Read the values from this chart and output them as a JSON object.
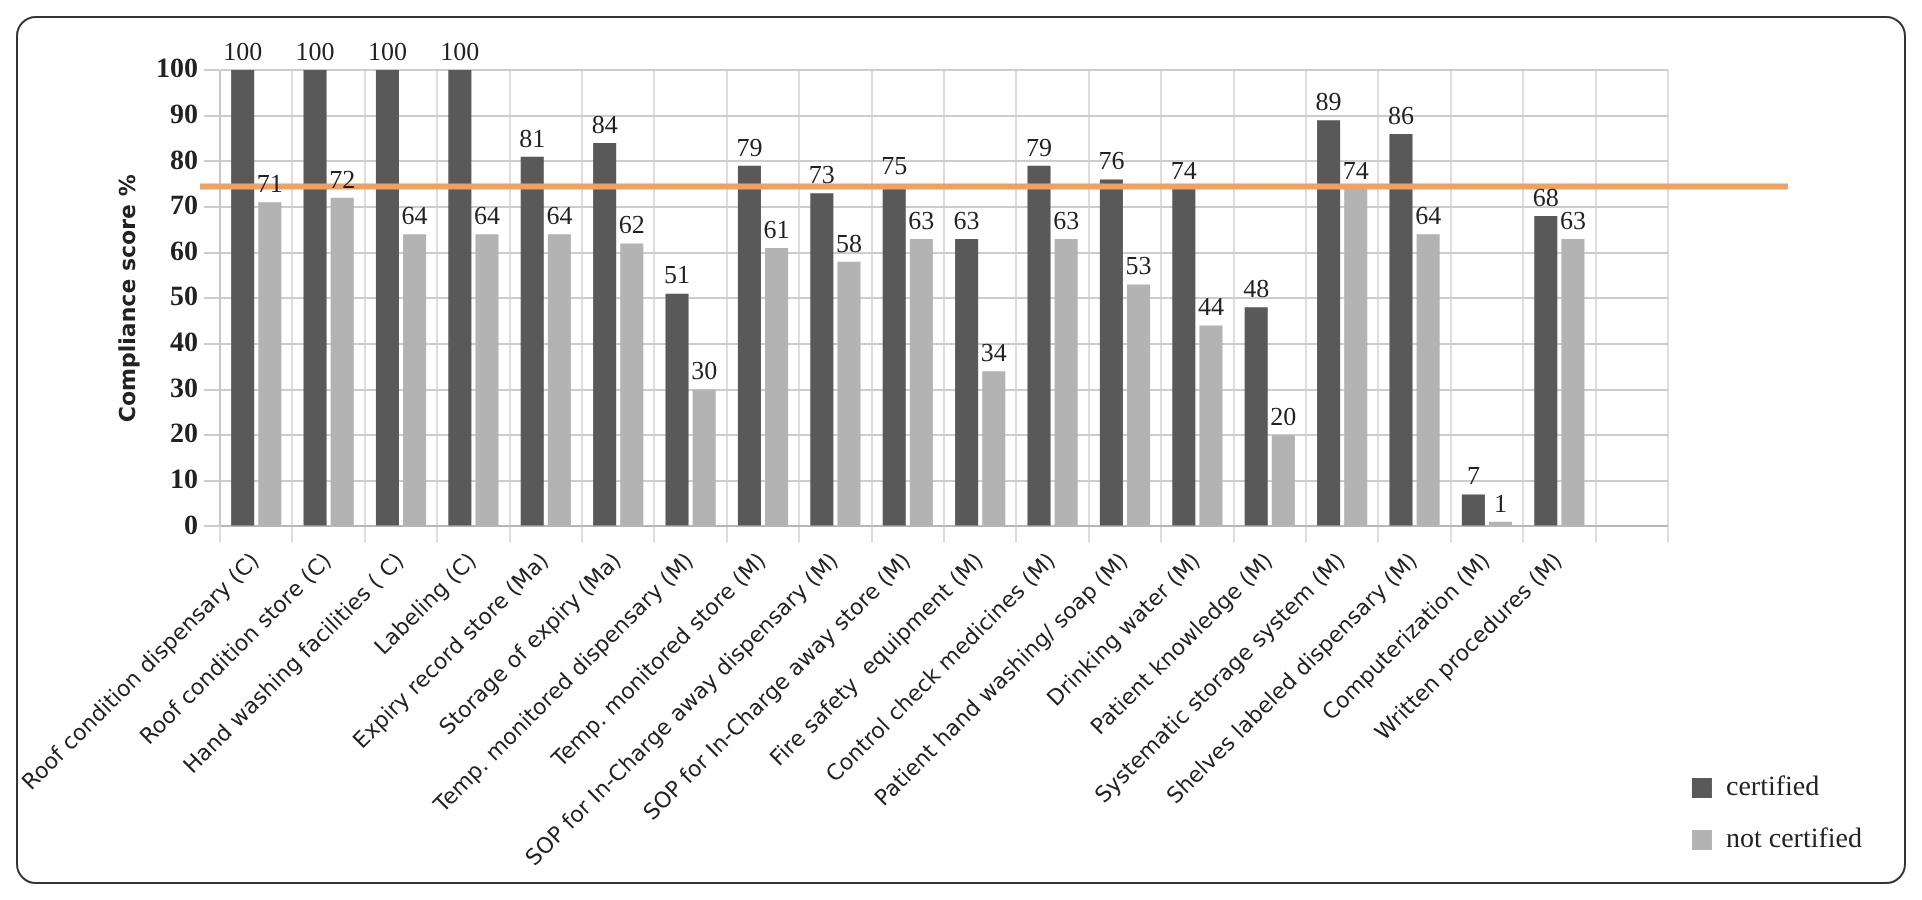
{
  "chart_data": {
    "type": "bar",
    "ylabel": "Compliance score %",
    "categories": [
      "Roof condition dispensary (C)",
      "Roof condition store (C)",
      "Hand washing facilities ( C)",
      "Labeling (C)",
      "Expiry record store (Ma)",
      "Storage of expiry (Ma)",
      "Temp. monitored dispensary (M)",
      "Temp. monitored store (M)",
      "SOP for In-Charge away dispensary (M)",
      "SOP for In-Charge away store (M)",
      "Fire safety  equipment (M)",
      "Control check medicines (M)",
      "Patient hand washing/ soap (M)",
      "Drinking water (M)",
      "Patient knowledge (M)",
      "Systematic storage system (M)",
      "Shelves labeled dispensary (M)",
      "Computerization (M)",
      "Written procedures (M)",
      null
    ],
    "series": [
      {
        "name": "certified",
        "color": "#595959",
        "values": [
          100,
          100,
          100,
          100,
          81,
          84,
          51,
          79,
          73,
          75,
          63,
          79,
          76,
          74,
          48,
          89,
          86,
          7,
          68,
          null
        ]
      },
      {
        "name": "not certified",
        "color": "#b3b3b3",
        "values": [
          71,
          72,
          64,
          64,
          64,
          62,
          30,
          61,
          58,
          63,
          34,
          63,
          53,
          44,
          20,
          74,
          64,
          1,
          63,
          null
        ]
      }
    ],
    "ylim": [
      0,
      100
    ],
    "yticks": [
      0,
      10,
      20,
      30,
      40,
      50,
      60,
      70,
      80,
      90,
      100
    ],
    "grid": true,
    "legend": "right",
    "data_labels": true,
    "ref_lines": [
      {
        "axis": "y",
        "value": 74.5,
        "color": "#f0a060"
      }
    ]
  }
}
